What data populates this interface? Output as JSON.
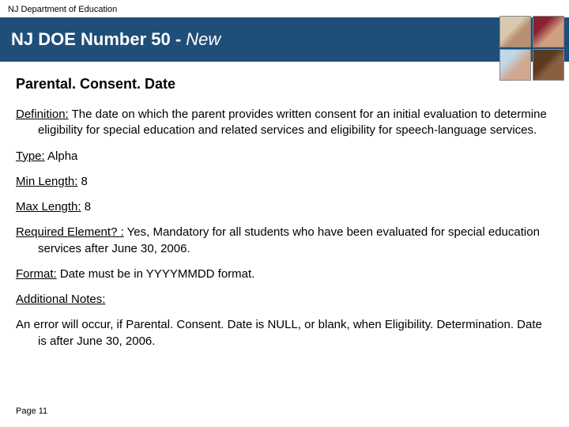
{
  "topLabel": "NJ Department of Education",
  "titlePrefix": "NJ DOE Number 50 - ",
  "titleItalic": "New",
  "heading": "Parental. Consent. Date",
  "fields": {
    "definition": {
      "label": "Definition:",
      "text": " The date on which the parent provides written consent for an initial evaluation to determine eligibility for special education and related services and eligibility for speech-language services."
    },
    "type": {
      "label": "Type:",
      "text": " Alpha"
    },
    "minLength": {
      "label": "Min Length:",
      "text": " 8"
    },
    "maxLength": {
      "label": "Max Length:",
      "text": " 8"
    },
    "required": {
      "label": "Required Element? :",
      "text": "  Yes, Mandatory for all students who have been evaluated for special education services after June 30, 2006."
    },
    "format": {
      "label": "Format:",
      "text": " Date must be in YYYYMMDD format."
    },
    "notesLabel": "Additional Notes:",
    "notesBody": "An error will occur, if Parental. Consent. Date is NULL, or blank, when Eligibility. Determination. Date is after June 30, 2006."
  },
  "footer": "Page 11",
  "colors": {
    "titleBarBg": "#1f4e79",
    "titleText": "#ffffff",
    "bodyText": "#000000"
  }
}
